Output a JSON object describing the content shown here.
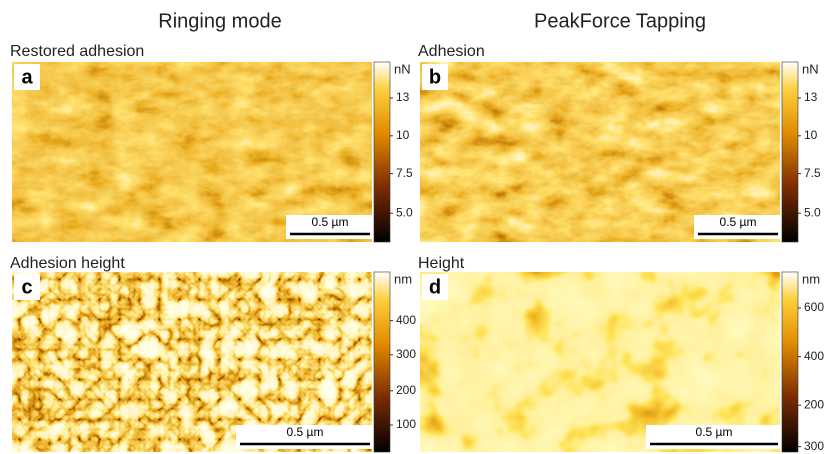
{
  "header": {
    "left": "Ringing mode",
    "right": "PeakForce Tapping"
  },
  "panels": [
    {
      "letter": "a",
      "title": "Restored adhesion",
      "unit": "nN",
      "ticks": [
        "13",
        "10",
        "7.5",
        "5.0"
      ],
      "scale_bar": "0.5 µm"
    },
    {
      "letter": "b",
      "title": "Adhesion",
      "unit": "nN",
      "ticks": [
        "13",
        "10",
        "7.5",
        "5.0"
      ],
      "scale_bar": "0.5 µm"
    },
    {
      "letter": "c",
      "title": "Adhesion height",
      "unit": "nm",
      "ticks": [
        "400",
        "300",
        "200",
        "100"
      ],
      "scale_bar": "0.5 µm"
    },
    {
      "letter": "d",
      "title": "Height",
      "unit": "nm",
      "ticks": [
        "600",
        "400",
        "200",
        "300"
      ],
      "scale_bar": "0.5 µm"
    }
  ]
}
